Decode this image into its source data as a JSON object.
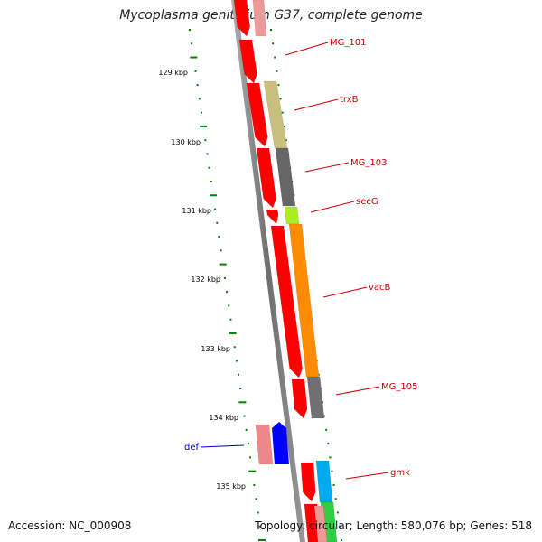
{
  "title": "Mycoplasma genitalium G37, complete genome",
  "footer": {
    "accession": "Accession: NC_000908",
    "summary": "Topology: circular; Length: 580,076 bp; Genes: 518"
  },
  "colors": {
    "forward_cds": "#ff0000",
    "reverse_cds_light": "#ee8888",
    "backbone": "#808080",
    "gc_tick": "#008000",
    "label_red": "#cc0000",
    "label_blue": "#0000cc"
  },
  "scale_labels": [
    "129 kbp",
    "130 kbp",
    "131 kbp",
    "132 kbp",
    "133 kbp",
    "134 kbp",
    "135 kbp"
  ],
  "gene_labels": [
    {
      "text": "MG_101",
      "color": "#cc0000"
    },
    {
      "text": "trxB",
      "color": "#cc0000"
    },
    {
      "text": "MG_103",
      "color": "#cc0000"
    },
    {
      "text": "secG",
      "color": "#cc0000"
    },
    {
      "text": "vacB",
      "color": "#cc0000"
    },
    {
      "text": "MG_105",
      "color": "#cc0000"
    },
    {
      "text": "gmk",
      "color": "#cc0000"
    },
    {
      "text": "def",
      "color": "#0000cc"
    }
  ]
}
